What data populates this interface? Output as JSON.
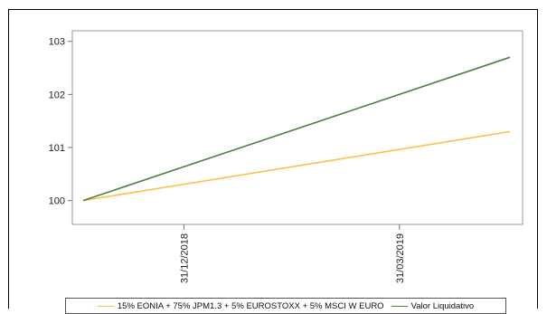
{
  "chart_data": {
    "type": "line",
    "x_labels": [
      "31/12/2018",
      "31/03/2019"
    ],
    "ylim": [
      99.55,
      103.2
    ],
    "y_ticks": [
      100,
      101,
      102,
      103
    ],
    "grid": false,
    "legend_position": "bottom",
    "series": [
      {
        "name": "15% EONIA + 75% JPM1.3 + 5% EUROSTOXX + 5% MSCI W EURO",
        "color": "#ffc04a",
        "start": 100.0,
        "end": 101.3
      },
      {
        "name": "Valor Liquidativo",
        "color": "#4e7f3e",
        "start": 100.0,
        "end": 102.7
      }
    ]
  }
}
